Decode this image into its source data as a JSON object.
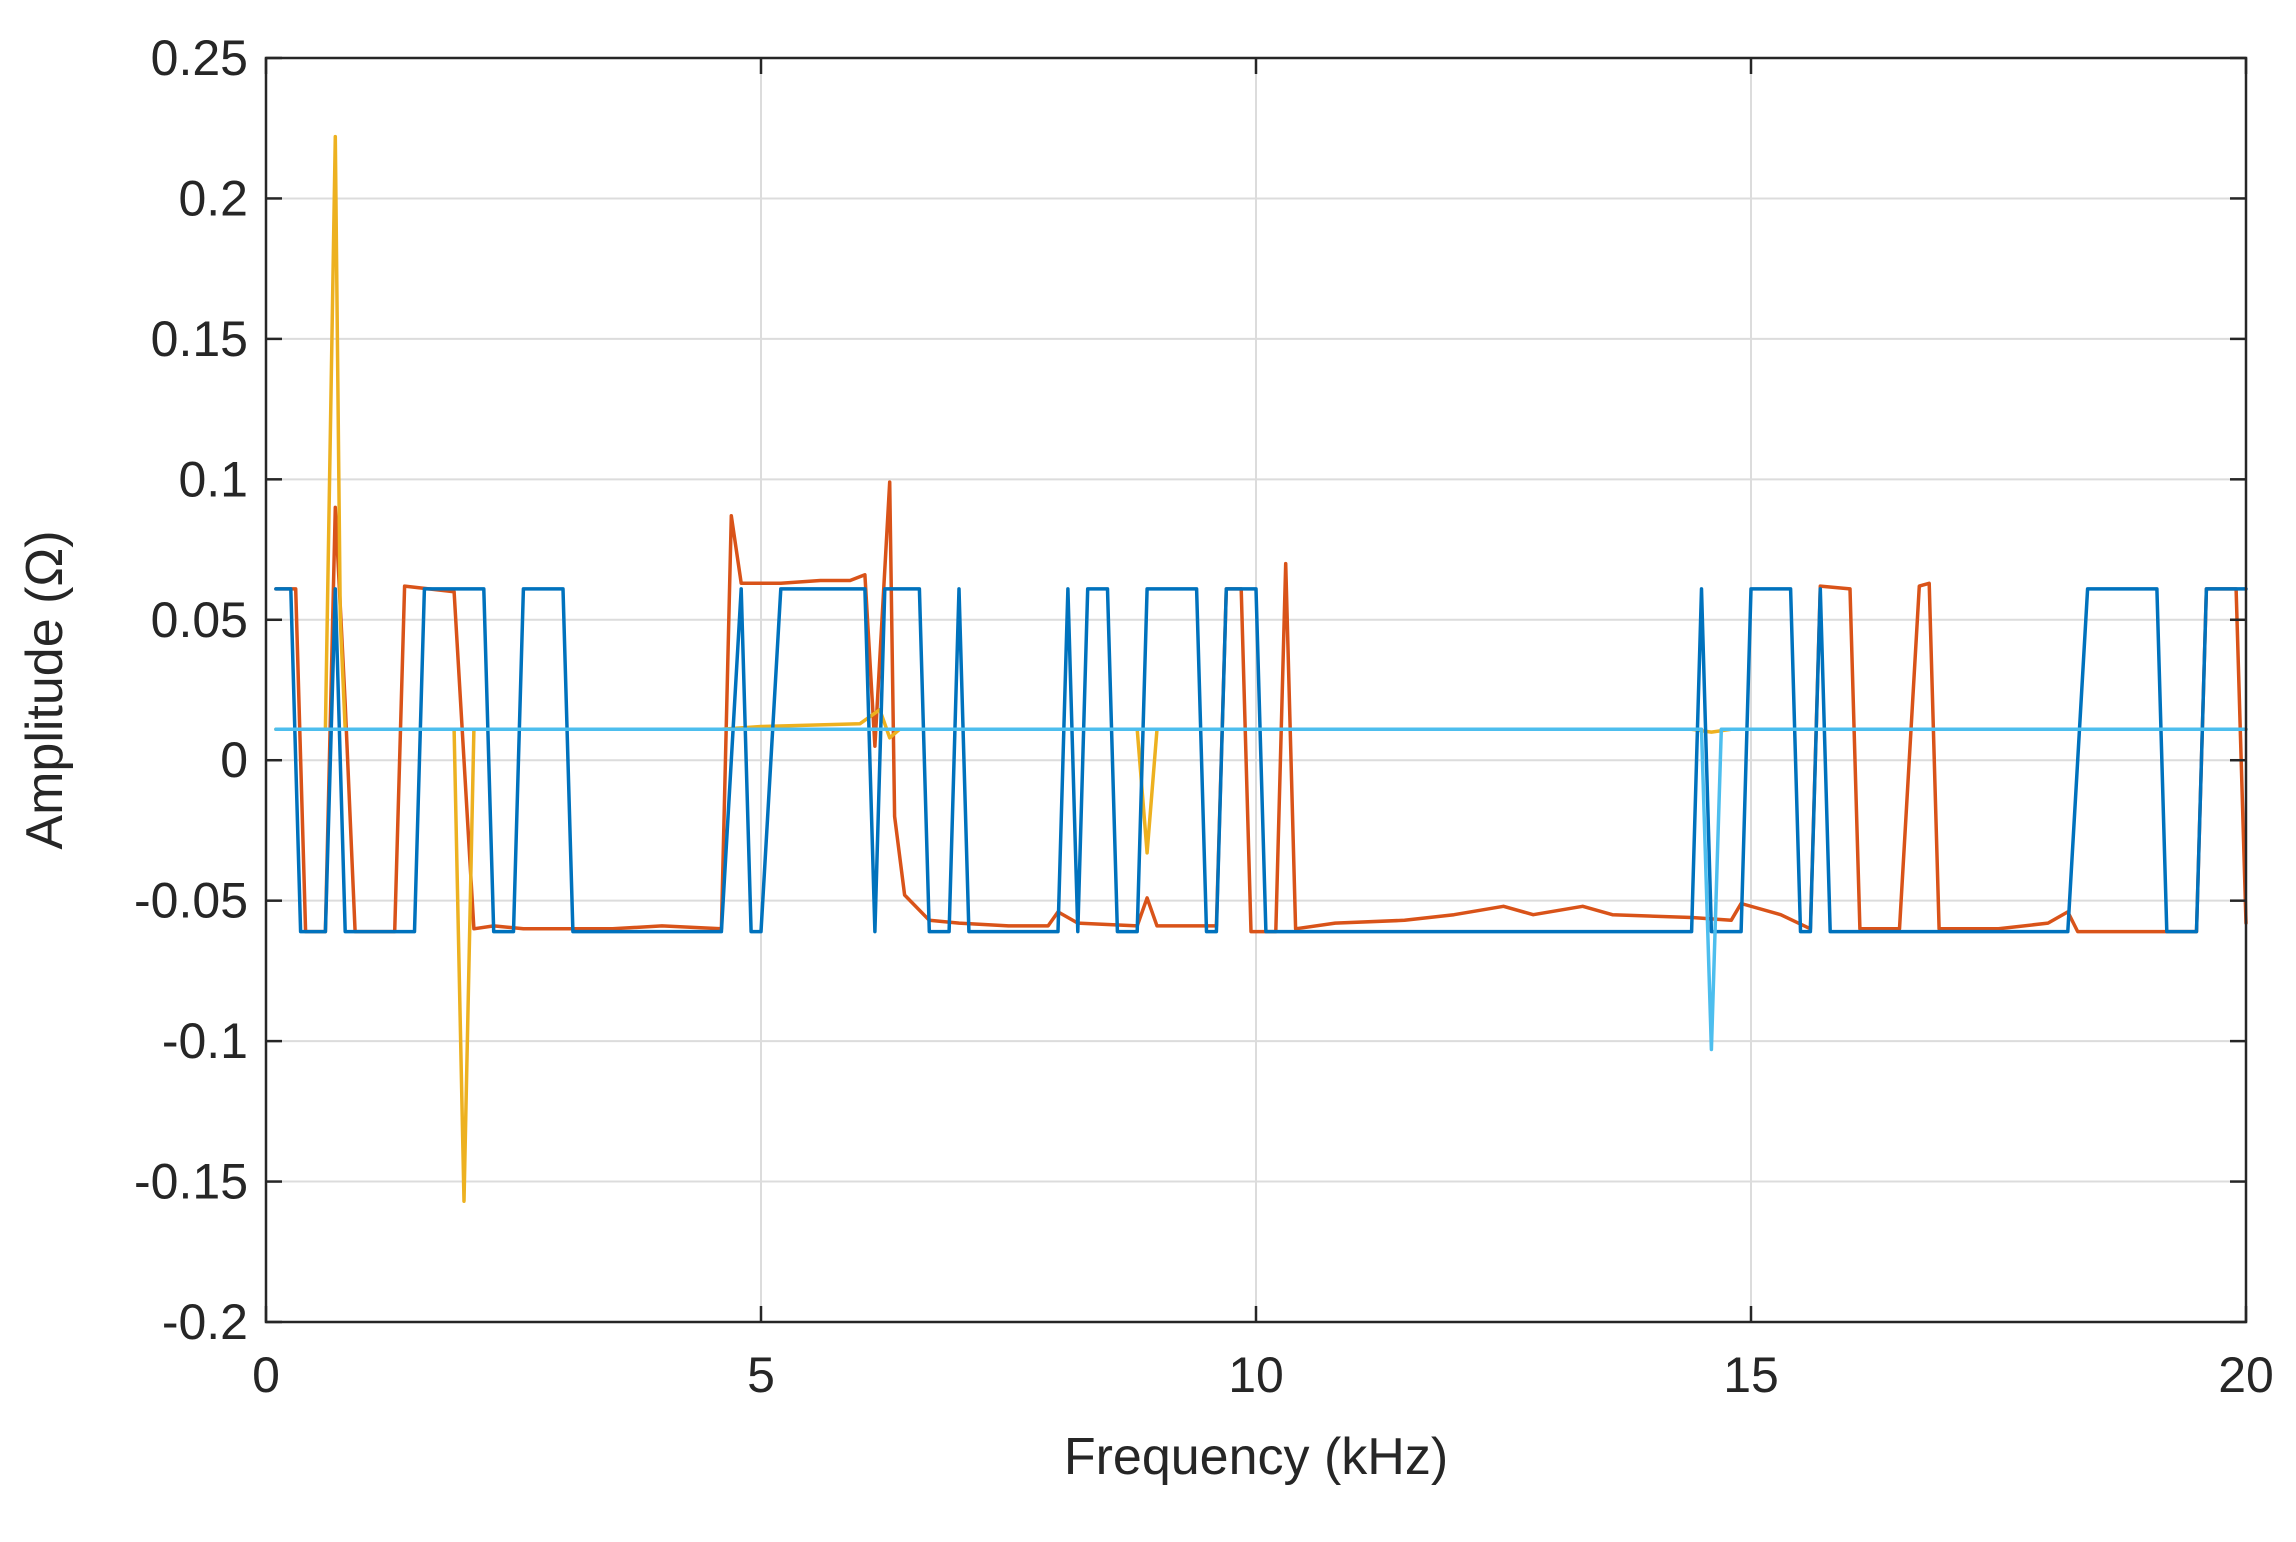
{
  "chart_data": {
    "type": "line",
    "title": "",
    "xlabel": "Frequency (kHz)",
    "ylabel": "Amplitude (Ω)",
    "xlim": [
      0,
      20
    ],
    "ylim": [
      -0.2,
      0.25
    ],
    "xticks": [
      0,
      5,
      10,
      15,
      20
    ],
    "xtick_labels": [
      "0",
      "5",
      "10",
      "15",
      "20"
    ],
    "yticks": [
      0.25,
      0.2,
      0.15,
      0.1,
      0.05,
      0,
      -0.05,
      -0.1,
      -0.15,
      -0.2
    ],
    "ytick_labels": [
      "0.25",
      "0.2",
      "0.15",
      "0.1",
      "0.05",
      "0",
      "-0.05",
      "-0.1",
      "-0.15",
      "-0.2"
    ],
    "grid": true,
    "legend": "none",
    "series": [
      {
        "color": "#D95319",
        "points": [
          [
            0.1,
            0.061
          ],
          [
            0.3,
            0.061
          ],
          [
            0.4,
            -0.061
          ],
          [
            0.6,
            -0.061
          ],
          [
            0.7,
            0.09
          ],
          [
            0.8,
            0.02
          ],
          [
            0.9,
            -0.061
          ],
          [
            1.3,
            -0.061
          ],
          [
            1.4,
            0.062
          ],
          [
            1.9,
            0.06
          ],
          [
            2.1,
            -0.06
          ],
          [
            2.3,
            -0.059
          ],
          [
            2.6,
            -0.06
          ],
          [
            3.5,
            -0.06
          ],
          [
            4.0,
            -0.059
          ],
          [
            4.6,
            -0.06
          ],
          [
            4.7,
            0.087
          ],
          [
            4.8,
            0.063
          ],
          [
            5.2,
            0.063
          ],
          [
            5.6,
            0.064
          ],
          [
            5.9,
            0.064
          ],
          [
            6.05,
            0.066
          ],
          [
            6.15,
            0.005
          ],
          [
            6.3,
            0.099
          ],
          [
            6.35,
            -0.02
          ],
          [
            6.45,
            -0.048
          ],
          [
            6.7,
            -0.057
          ],
          [
            7.0,
            -0.058
          ],
          [
            7.5,
            -0.059
          ],
          [
            7.9,
            -0.059
          ],
          [
            8.0,
            -0.054
          ],
          [
            8.2,
            -0.058
          ],
          [
            8.8,
            -0.059
          ],
          [
            8.9,
            -0.049
          ],
          [
            9.0,
            -0.059
          ],
          [
            9.6,
            -0.059
          ],
          [
            9.7,
            0.061
          ],
          [
            9.85,
            0.061
          ],
          [
            9.95,
            -0.061
          ],
          [
            10.2,
            -0.061
          ],
          [
            10.3,
            0.07
          ],
          [
            10.4,
            -0.06
          ],
          [
            10.8,
            -0.058
          ],
          [
            11.5,
            -0.057
          ],
          [
            12.0,
            -0.055
          ],
          [
            12.5,
            -0.052
          ],
          [
            12.8,
            -0.055
          ],
          [
            13.3,
            -0.052
          ],
          [
            13.6,
            -0.055
          ],
          [
            14.4,
            -0.056
          ],
          [
            14.8,
            -0.057
          ],
          [
            14.9,
            -0.051
          ],
          [
            15.3,
            -0.055
          ],
          [
            15.6,
            -0.06
          ],
          [
            15.7,
            0.062
          ],
          [
            16.0,
            0.061
          ],
          [
            16.1,
            -0.06
          ],
          [
            16.5,
            -0.06
          ],
          [
            16.7,
            0.062
          ],
          [
            16.8,
            0.063
          ],
          [
            16.9,
            -0.06
          ],
          [
            17.5,
            -0.06
          ],
          [
            18.0,
            -0.058
          ],
          [
            18.2,
            -0.054
          ],
          [
            18.3,
            -0.061
          ],
          [
            19.5,
            -0.061
          ],
          [
            19.6,
            0.061
          ],
          [
            19.9,
            0.061
          ],
          [
            20.0,
            -0.058
          ]
        ]
      },
      {
        "color": "#EDB120",
        "points": [
          [
            0.1,
            0.011
          ],
          [
            0.6,
            0.011
          ],
          [
            0.7,
            0.222
          ],
          [
            0.75,
            0.05
          ],
          [
            0.8,
            0.011
          ],
          [
            1.9,
            0.011
          ],
          [
            2.0,
            -0.157
          ],
          [
            2.1,
            0.011
          ],
          [
            4.6,
            0.011
          ],
          [
            5.0,
            0.012
          ],
          [
            6.0,
            0.013
          ],
          [
            6.2,
            0.018
          ],
          [
            6.3,
            0.008
          ],
          [
            6.4,
            0.011
          ],
          [
            8.8,
            0.011
          ],
          [
            8.9,
            -0.033
          ],
          [
            9.0,
            0.011
          ],
          [
            14.4,
            0.011
          ],
          [
            14.6,
            0.01
          ],
          [
            14.8,
            0.011
          ],
          [
            20.0,
            0.011
          ]
        ]
      },
      {
        "color": "#0072BD",
        "points": [
          [
            0.1,
            0.061
          ],
          [
            0.25,
            0.061
          ],
          [
            0.35,
            -0.061
          ],
          [
            0.6,
            -0.061
          ],
          [
            0.7,
            0.061
          ],
          [
            0.8,
            -0.061
          ],
          [
            1.5,
            -0.061
          ],
          [
            1.6,
            0.061
          ],
          [
            2.2,
            0.061
          ],
          [
            2.3,
            -0.061
          ],
          [
            2.5,
            -0.061
          ],
          [
            2.6,
            0.061
          ],
          [
            3.0,
            0.061
          ],
          [
            3.1,
            -0.061
          ],
          [
            4.6,
            -0.061
          ],
          [
            4.8,
            0.061
          ],
          [
            4.9,
            -0.061
          ],
          [
            5.0,
            -0.061
          ],
          [
            5.2,
            0.061
          ],
          [
            6.05,
            0.061
          ],
          [
            6.15,
            -0.061
          ],
          [
            6.25,
            0.061
          ],
          [
            6.6,
            0.061
          ],
          [
            6.7,
            -0.061
          ],
          [
            6.9,
            -0.061
          ],
          [
            7.0,
            0.061
          ],
          [
            7.1,
            -0.061
          ],
          [
            8.0,
            -0.061
          ],
          [
            8.1,
            0.061
          ],
          [
            8.2,
            -0.061
          ],
          [
            8.3,
            0.061
          ],
          [
            8.5,
            0.061
          ],
          [
            8.6,
            -0.061
          ],
          [
            8.8,
            -0.061
          ],
          [
            8.9,
            0.061
          ],
          [
            9.4,
            0.061
          ],
          [
            9.5,
            -0.061
          ],
          [
            9.6,
            -0.061
          ],
          [
            9.7,
            0.061
          ],
          [
            10.0,
            0.061
          ],
          [
            10.1,
            -0.061
          ],
          [
            14.4,
            -0.061
          ],
          [
            14.5,
            0.061
          ],
          [
            14.6,
            -0.061
          ],
          [
            14.9,
            -0.061
          ],
          [
            15.0,
            0.061
          ],
          [
            15.4,
            0.061
          ],
          [
            15.5,
            -0.061
          ],
          [
            15.6,
            -0.061
          ],
          [
            15.7,
            0.061
          ],
          [
            15.8,
            -0.061
          ],
          [
            18.2,
            -0.061
          ],
          [
            18.4,
            0.061
          ],
          [
            19.1,
            0.061
          ],
          [
            19.2,
            -0.061
          ],
          [
            19.5,
            -0.061
          ],
          [
            19.6,
            0.061
          ],
          [
            20.0,
            0.061
          ]
        ]
      },
      {
        "color": "#4DBEEE",
        "points": [
          [
            0.1,
            0.011
          ],
          [
            14.5,
            0.011
          ],
          [
            14.6,
            -0.103
          ],
          [
            14.7,
            0.011
          ],
          [
            20.0,
            0.011
          ]
        ]
      }
    ]
  }
}
